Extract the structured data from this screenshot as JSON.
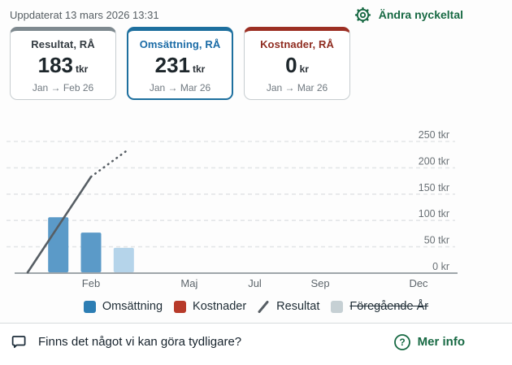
{
  "colors": {
    "green": "#176943",
    "selected_blue": "#1d6f9e",
    "bar_blue": "#5b9ac8",
    "bar_blue_light": "#b5d4ea",
    "legend_blue": "#2d7eb4",
    "legend_red": "#b73a2a",
    "legend_gray": "#c6d0d4",
    "line_gray": "#575e64",
    "grid_gray": "#e4e6e8",
    "axis_gray": "#9fa6aa"
  },
  "header": {
    "updated": "Uppdaterat 13 mars 2026 13:31",
    "edit_kpi_label": "Ändra nyckeltal",
    "edit_kpi_icon": "gear-icon"
  },
  "cards": [
    {
      "title": "Resultat, RÅ",
      "value": "183",
      "unit": "tkr",
      "period": "Jan → Feb 26",
      "accent": "#7e898f",
      "title_color": "#333b41",
      "selected": false
    },
    {
      "title": "Omsättning, RÅ",
      "value": "231",
      "unit": "tkr",
      "period": "Jan → Mar 26",
      "accent": "#1d6f9e",
      "title_color": "#1a6ba6",
      "selected": true
    },
    {
      "title": "Kostnader, RÅ",
      "value": "0",
      "unit": "kr",
      "period": "Jan → Mar 26",
      "accent": "#9c2f23",
      "title_color": "#8f2c20",
      "selected": false
    }
  ],
  "chart_data": {
    "type": "bar+line",
    "title": "",
    "y_axis": {
      "ticks": [
        {
          "label": "250 tkr",
          "value": 250
        },
        {
          "label": "200 tkr",
          "value": 200
        },
        {
          "label": "150 tkr",
          "value": 150
        },
        {
          "label": "100 tkr",
          "value": 100
        },
        {
          "label": "50 tkr",
          "value": 50
        },
        {
          "label": "0 kr",
          "value": 0
        }
      ],
      "max": 250,
      "grid": "dashed"
    },
    "x_axis": {
      "labels": [
        {
          "label": "Feb",
          "month": 2
        },
        {
          "label": "Maj",
          "month": 5
        },
        {
          "label": "Jul",
          "month": 7
        },
        {
          "label": "Sep",
          "month": 9
        },
        {
          "label": "Dec",
          "month": 12
        }
      ],
      "months_in_year": 12
    },
    "bars": {
      "name": "Omsättning",
      "color": "#5b9ac8",
      "partial_month_color": "#b5d4ea",
      "points": [
        {
          "month": 1,
          "label": "Jan",
          "value": 106,
          "partial": false
        },
        {
          "month": 2,
          "label": "Feb",
          "value": 77,
          "partial": false
        },
        {
          "month": 3,
          "label": "Mar",
          "value": 48,
          "partial": true
        }
      ]
    },
    "line": {
      "name": "Resultat",
      "color": "#575e64",
      "solid_points": [
        {
          "month": 0.05,
          "value": 0
        },
        {
          "month": 2,
          "value": 183
        }
      ],
      "dotted_points": [
        {
          "month": 2,
          "value": 183
        },
        {
          "month": 3.08,
          "value": 232
        }
      ]
    }
  },
  "legend": [
    {
      "label": "Omsättning",
      "swatch": "square",
      "color": "#2d7eb4",
      "struck": false
    },
    {
      "label": "Kostnader",
      "swatch": "square",
      "color": "#b73a2a",
      "struck": false
    },
    {
      "label": "Resultat",
      "swatch": "line",
      "color": "#575e64",
      "struck": false
    },
    {
      "label": "Föregående År",
      "swatch": "square",
      "color": "#c6d0d4",
      "struck": true
    }
  ],
  "footer": {
    "question": "Finns det något vi kan göra tydligare?",
    "question_icon": "speech-bubble-icon",
    "more_info_label": "Mer info",
    "more_info_icon": "question-circle-icon"
  }
}
